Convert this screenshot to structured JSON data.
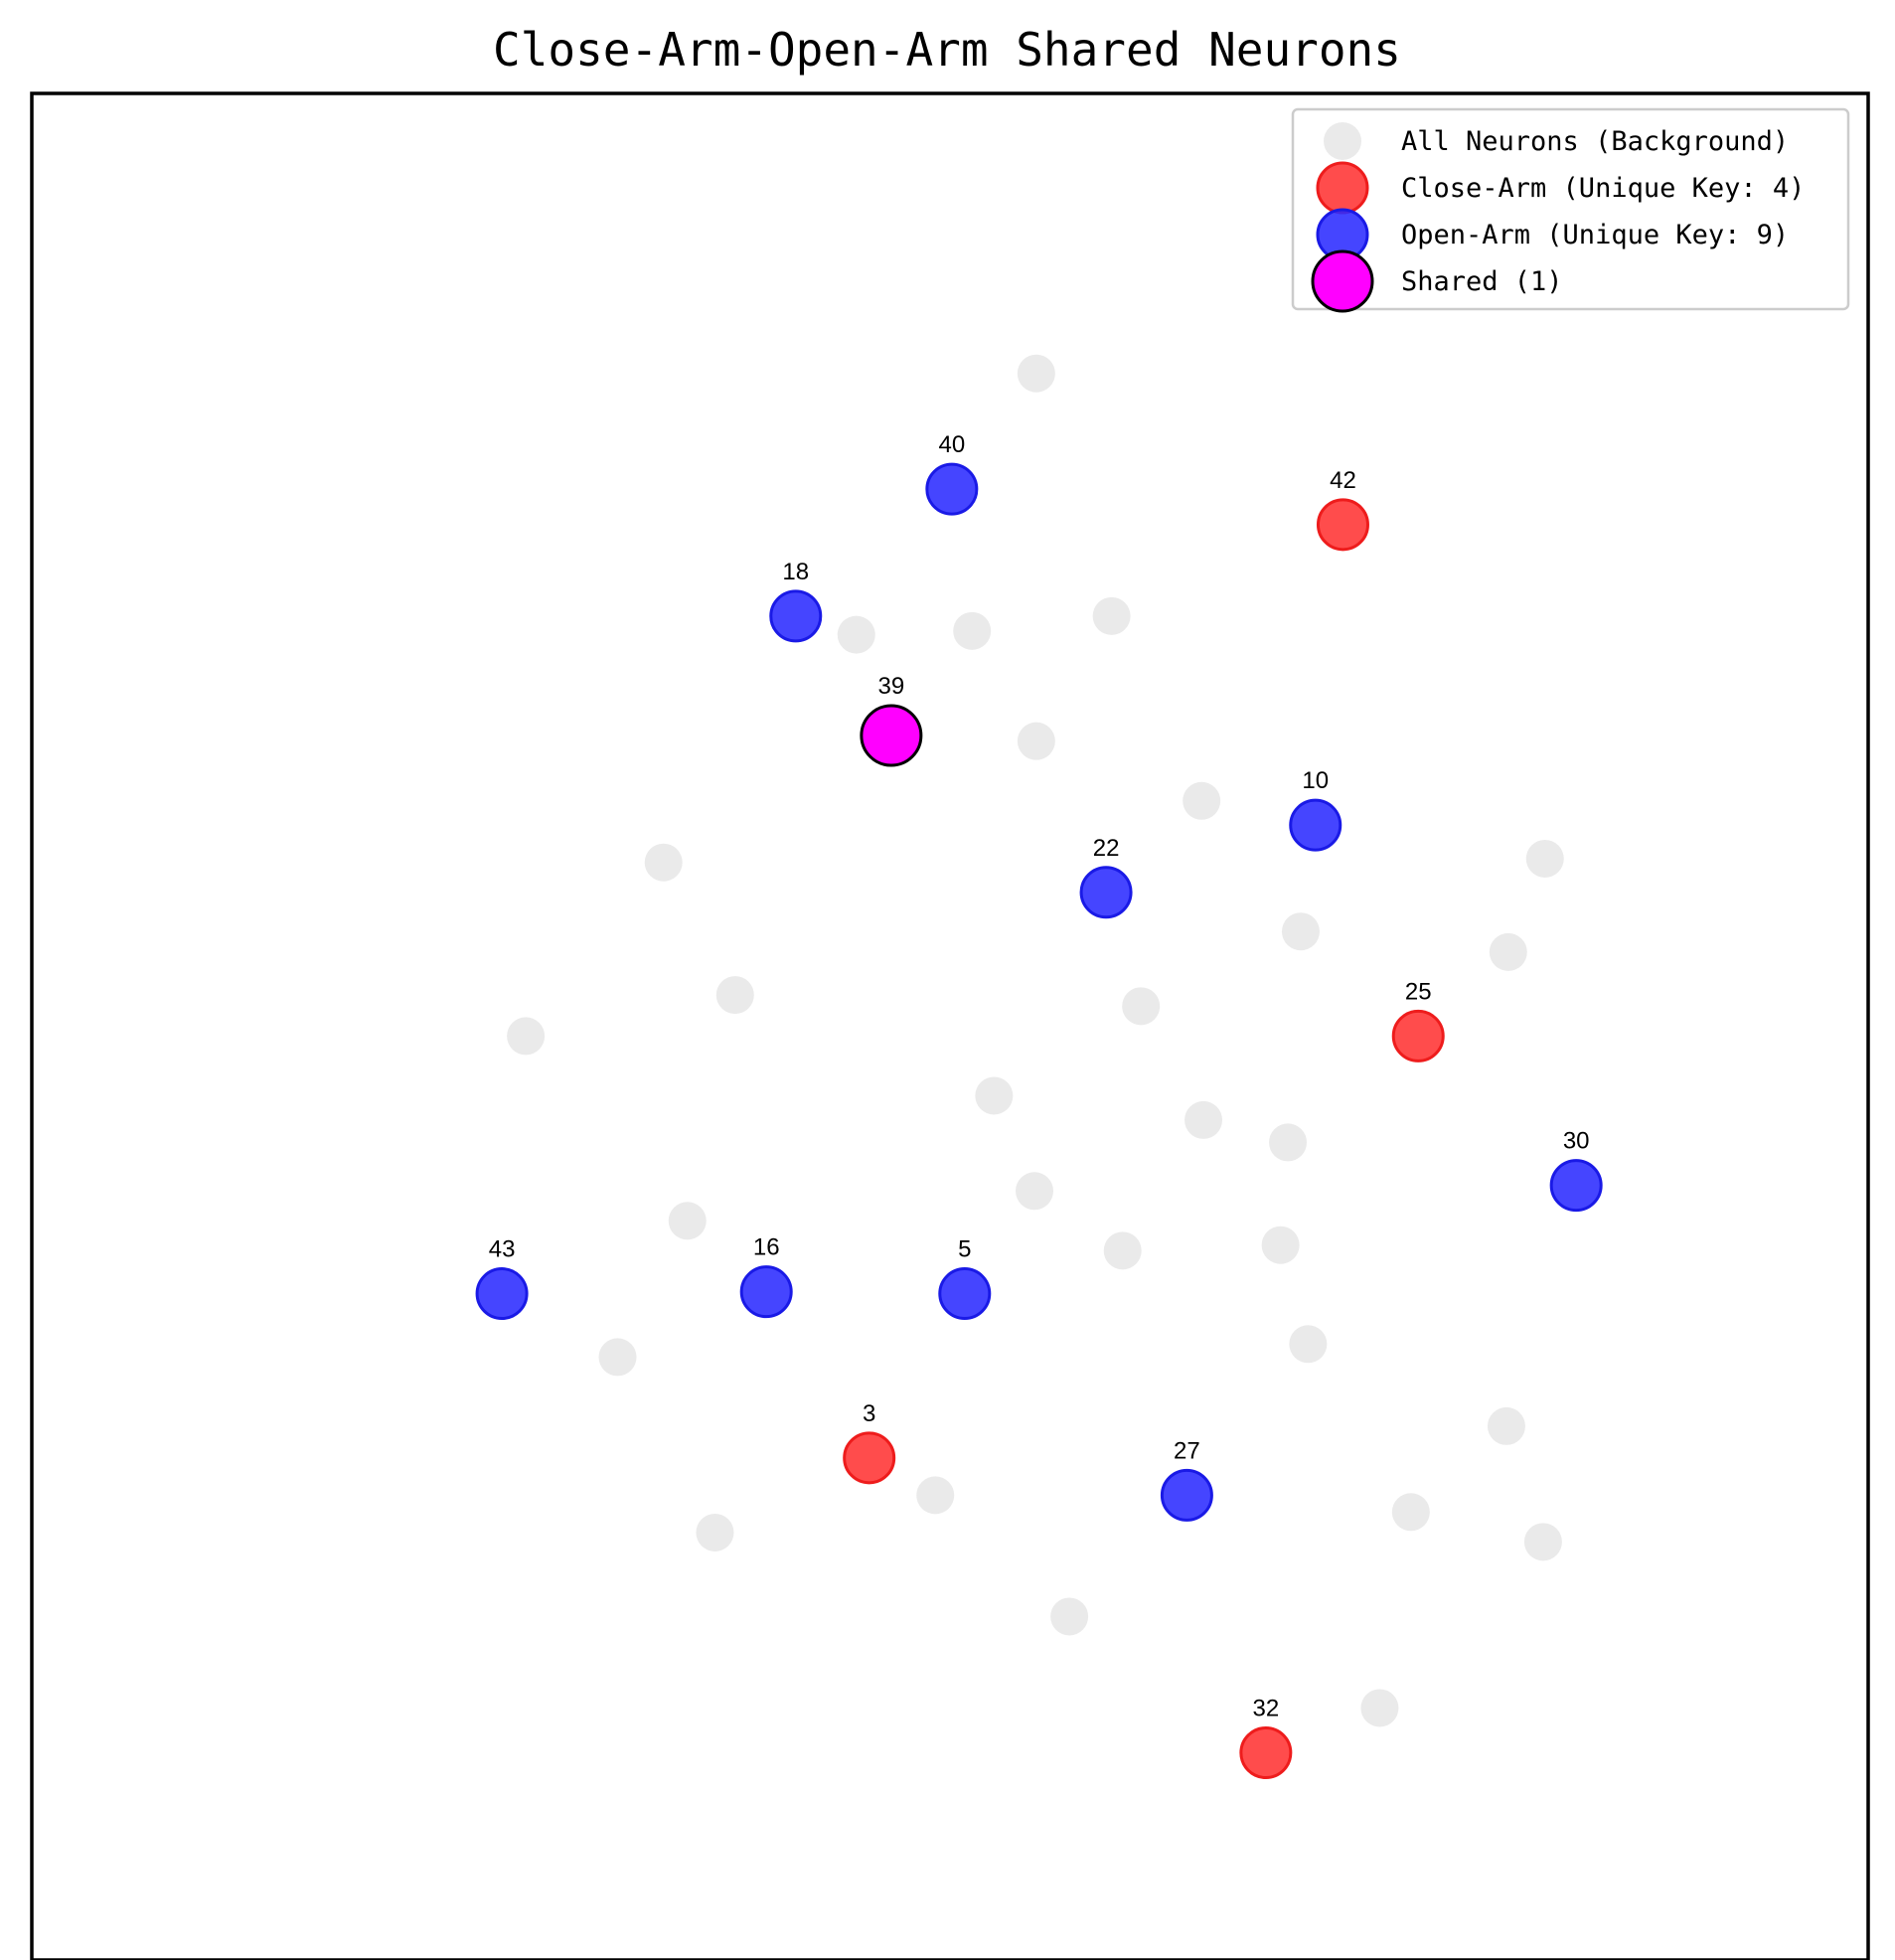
{
  "chart_data": {
    "type": "scatter",
    "title": "Close-Arm-Open-Arm Shared Neurons",
    "xlabel": "",
    "ylabel": "",
    "xlim": [
      0,
      100
    ],
    "ylim": [
      0,
      100
    ],
    "axis_ticks": false,
    "grid": false,
    "legend_position": "top-right",
    "colors": {
      "background": "#e8e8e8",
      "close_arm": "#ff3333",
      "open_arm": "#2b2bff",
      "shared": "#ff00ff",
      "shared_edge": "#000000"
    },
    "legend": [
      {
        "key": "background",
        "label": "All Neurons (Background)"
      },
      {
        "key": "close_arm",
        "label": "Close-Arm (Unique Key: 4)"
      },
      {
        "key": "open_arm",
        "label": "Open-Arm (Unique Key: 9)"
      },
      {
        "key": "shared",
        "label": "Shared (1)"
      }
    ],
    "series": [
      {
        "key": "background",
        "points": [
          {
            "x": 54.7,
            "y": 85.0
          },
          {
            "x": 44.9,
            "y": 71.0
          },
          {
            "x": 51.2,
            "y": 71.2
          },
          {
            "x": 58.8,
            "y": 72.0
          },
          {
            "x": 54.7,
            "y": 65.3
          },
          {
            "x": 63.7,
            "y": 62.1
          },
          {
            "x": 34.4,
            "y": 58.8
          },
          {
            "x": 82.4,
            "y": 59.0
          },
          {
            "x": 69.1,
            "y": 55.1
          },
          {
            "x": 80.4,
            "y": 54.0
          },
          {
            "x": 38.3,
            "y": 51.7
          },
          {
            "x": 60.4,
            "y": 51.1
          },
          {
            "x": 26.9,
            "y": 49.5
          },
          {
            "x": 52.4,
            "y": 46.3
          },
          {
            "x": 63.8,
            "y": 45.0
          },
          {
            "x": 68.4,
            "y": 43.8
          },
          {
            "x": 54.6,
            "y": 41.2
          },
          {
            "x": 35.7,
            "y": 39.6
          },
          {
            "x": 59.4,
            "y": 38.0
          },
          {
            "x": 68.0,
            "y": 38.3
          },
          {
            "x": 31.9,
            "y": 32.3
          },
          {
            "x": 69.5,
            "y": 33.0
          },
          {
            "x": 80.3,
            "y": 28.6
          },
          {
            "x": 49.2,
            "y": 24.9
          },
          {
            "x": 75.1,
            "y": 24.0
          },
          {
            "x": 37.2,
            "y": 22.9
          },
          {
            "x": 82.3,
            "y": 22.4
          },
          {
            "x": 56.5,
            "y": 18.4
          },
          {
            "x": 73.4,
            "y": 13.5
          }
        ]
      },
      {
        "key": "close_arm",
        "points": [
          {
            "x": 71.4,
            "y": 76.9,
            "label": "42"
          },
          {
            "x": 75.5,
            "y": 49.5,
            "label": "25"
          },
          {
            "x": 45.6,
            "y": 26.9,
            "label": "3"
          },
          {
            "x": 67.2,
            "y": 11.1,
            "label": "32"
          }
        ]
      },
      {
        "key": "open_arm",
        "points": [
          {
            "x": 50.1,
            "y": 78.8,
            "label": "40"
          },
          {
            "x": 41.6,
            "y": 72.0,
            "label": "18"
          },
          {
            "x": 69.9,
            "y": 60.8,
            "label": "10"
          },
          {
            "x": 58.5,
            "y": 57.2,
            "label": "22"
          },
          {
            "x": 84.1,
            "y": 41.5,
            "label": "30"
          },
          {
            "x": 25.6,
            "y": 35.7,
            "label": "43"
          },
          {
            "x": 40.0,
            "y": 35.8,
            "label": "16"
          },
          {
            "x": 50.8,
            "y": 35.7,
            "label": "5"
          },
          {
            "x": 62.9,
            "y": 24.9,
            "label": "27"
          }
        ]
      },
      {
        "key": "shared",
        "points": [
          {
            "x": 46.8,
            "y": 65.6,
            "label": "39"
          }
        ]
      }
    ]
  }
}
